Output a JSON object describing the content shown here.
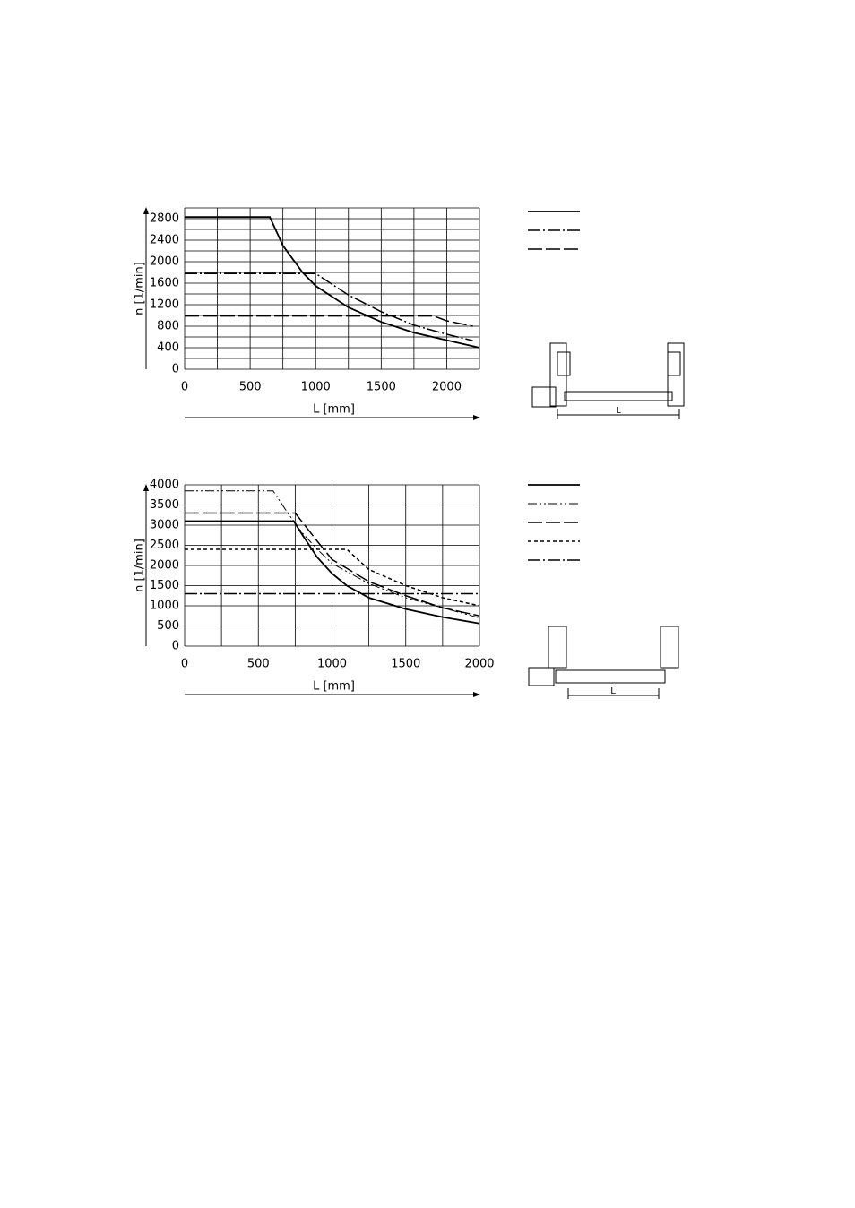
{
  "chart_data": [
    {
      "type": "line",
      "y_label": "n [1/min]",
      "x_label": "L [mm]",
      "drawing_label": "L",
      "xlim": [
        0,
        2250
      ],
      "ylim": [
        0,
        3000
      ],
      "xticks": [
        0,
        500,
        1000,
        1500,
        2000
      ],
      "yticks": [
        0,
        400,
        800,
        1200,
        1600,
        2000,
        2400,
        2800
      ],
      "xgrid": [
        0,
        250,
        500,
        750,
        1000,
        1250,
        1500,
        1750,
        2000,
        2250
      ],
      "ygrid": [
        0,
        200,
        400,
        600,
        800,
        1000,
        1200,
        1400,
        1600,
        1800,
        2000,
        2200,
        2400,
        2600,
        2800,
        3000
      ],
      "series": [
        {
          "color": "#000000",
          "dash": "solid",
          "x": [
            0,
            650,
            750,
            900,
            1000,
            1250,
            1500,
            1750,
            2000,
            2250
          ],
          "values": [
            2830,
            2830,
            2300,
            1800,
            1550,
            1150,
            880,
            680,
            540,
            400
          ]
        },
        {
          "color": "#000000",
          "dash": "dashdot",
          "x": [
            0,
            1000,
            1250,
            1500,
            1750,
            2000,
            2200
          ],
          "values": [
            1780,
            1780,
            1380,
            1070,
            820,
            650,
            530
          ]
        },
        {
          "color": "#000000",
          "dash": "longdash",
          "x": [
            0,
            1900,
            2000,
            2200
          ],
          "values": [
            990,
            990,
            900,
            800
          ]
        }
      ]
    },
    {
      "type": "line",
      "y_label": "n [1/min]",
      "x_label": "L [mm]",
      "drawing_label": "L",
      "xlim": [
        0,
        2000
      ],
      "ylim": [
        0,
        4000
      ],
      "xticks": [
        0,
        500,
        1000,
        1500,
        2000
      ],
      "yticks": [
        0,
        500,
        1000,
        1500,
        2000,
        2500,
        3000,
        3500,
        4000
      ],
      "xgrid": [
        0,
        250,
        500,
        750,
        1000,
        1250,
        1500,
        1750,
        2000
      ],
      "ygrid": [
        0,
        500,
        1000,
        1500,
        2000,
        2500,
        3000,
        3500,
        4000
      ],
      "series": [
        {
          "color": "#000000",
          "dash": "solid",
          "x": [
            0,
            740,
            800,
            900,
            1000,
            1100,
            1250,
            1500,
            1750,
            2000
          ],
          "values": [
            3100,
            3100,
            2750,
            2200,
            1800,
            1500,
            1200,
            920,
            720,
            560
          ]
        },
        {
          "color": "#000000",
          "dash": "dashdotdot",
          "x": [
            0,
            600,
            700,
            800,
            900,
            1000,
            1250,
            1500,
            1750,
            2000
          ],
          "values": [
            3850,
            3850,
            3300,
            2800,
            2400,
            2050,
            1550,
            1200,
            950,
            700
          ]
        },
        {
          "color": "#000000",
          "dash": "longdash",
          "x": [
            0,
            750,
            900,
            1000,
            1250,
            1500,
            1750,
            2000
          ],
          "values": [
            3300,
            3300,
            2600,
            2150,
            1600,
            1250,
            950,
            750
          ]
        },
        {
          "color": "#000000",
          "dash": "shortdash",
          "x": [
            0,
            1100,
            1250,
            1500,
            1750,
            2000
          ],
          "values": [
            2400,
            2400,
            1900,
            1500,
            1200,
            1000
          ]
        },
        {
          "color": "#000000",
          "dash": "dashdot",
          "x": [
            0,
            2000
          ],
          "values": [
            1300,
            1300
          ]
        }
      ]
    }
  ]
}
